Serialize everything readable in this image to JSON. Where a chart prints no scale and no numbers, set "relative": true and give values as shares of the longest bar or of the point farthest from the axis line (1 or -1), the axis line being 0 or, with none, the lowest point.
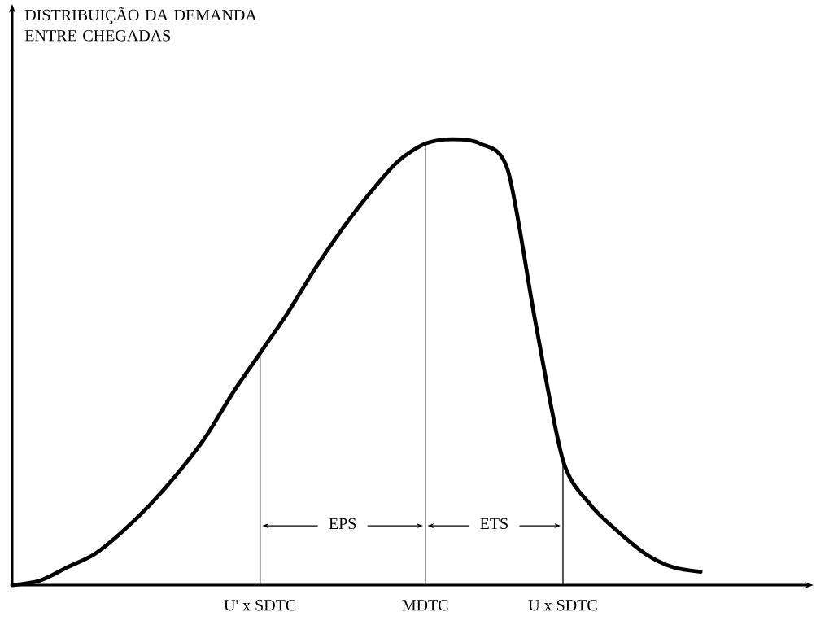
{
  "chart_data": {
    "type": "line",
    "categories": [
      null,
      null,
      null,
      null,
      null,
      null,
      null,
      null,
      null,
      "U' x SDTC",
      null,
      null,
      null,
      null,
      null,
      "MDTC",
      null,
      null,
      null,
      null,
      "U x SDTC",
      null,
      null,
      null,
      null,
      null
    ],
    "values": [
      0.0,
      0.01,
      0.04,
      0.07,
      0.12,
      0.18,
      0.25,
      0.33,
      0.43,
      0.52,
      0.61,
      0.71,
      0.8,
      0.88,
      0.95,
      0.99,
      1.0,
      0.99,
      0.93,
      0.59,
      0.28,
      0.18,
      0.12,
      0.07,
      0.04,
      0.03
    ],
    "ref_lines": [
      {
        "axis": "x",
        "value": "U' x SDTC",
        "color": "#000000"
      },
      {
        "axis": "x",
        "value": "MDTC",
        "color": "#000000"
      },
      {
        "axis": "x",
        "value": "U x SDTC",
        "color": "#000000"
      }
    ],
    "color": "#000000",
    "relative": true,
    "marker": "none",
    "line_style": "solid",
    "annotations": [
      "DISTRIBUIÇÃO DA DEMANDA ENTRE CHEGADAS",
      "EPS",
      "ETS"
    ]
  }
}
